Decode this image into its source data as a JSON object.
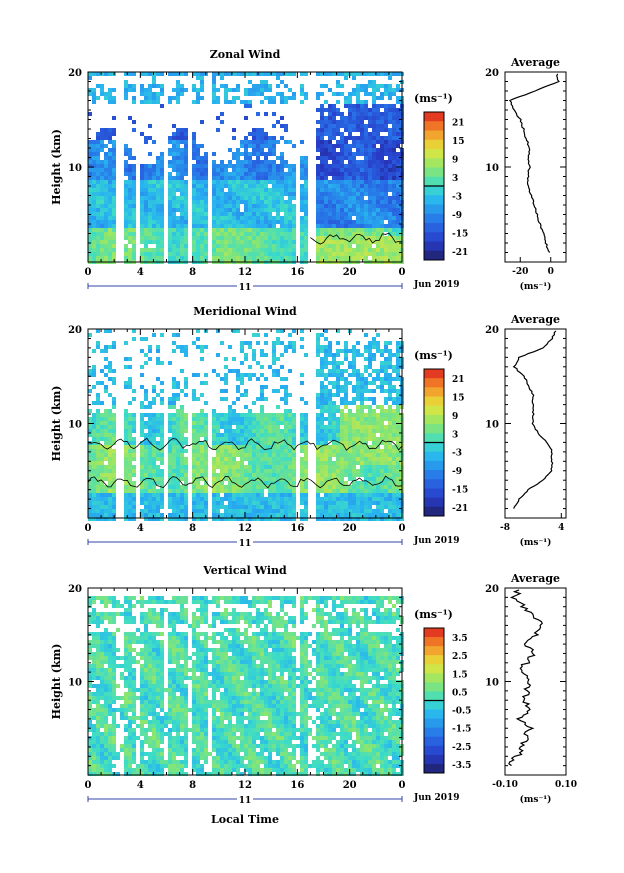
{
  "x_axis_label": "Local Time",
  "date_label": "Jun 2019",
  "day_label": "11",
  "colorbar_unit": "(ms⁻¹)",
  "chart_data": [
    {
      "type": "heatmap",
      "title": "Zonal Wind",
      "ylabel": "Height (km)",
      "xlabel": "",
      "xlim": [
        0,
        24
      ],
      "ylim": [
        0,
        20
      ],
      "x_ticks": [
        "0",
        "4",
        "8",
        "12",
        "16",
        "20",
        "0"
      ],
      "y_ticks": [
        "10",
        "20"
      ],
      "colorbar": {
        "unit": "(ms⁻¹)",
        "labels": [
          "21",
          "15",
          "9",
          "3",
          "-3",
          "-9",
          "-15",
          "-21"
        ],
        "range": [
          -24,
          24
        ]
      },
      "average_profile": {
        "title": "Average",
        "xlim": [
          -30,
          10
        ],
        "x_ticks": [
          "-20",
          "0"
        ],
        "unit": "(ms⁻¹)",
        "heights": [
          1,
          2,
          3,
          4,
          5,
          6,
          7,
          8,
          9,
          10,
          11,
          12,
          13,
          14,
          15,
          16,
          17,
          18,
          19,
          20
        ],
        "values": [
          -1,
          -3,
          -5,
          -7,
          -9,
          -11,
          -13,
          -15,
          -15,
          -14,
          -15,
          -14,
          -16,
          -18,
          -20,
          -24,
          -27,
          -10,
          5,
          4
        ]
      }
    },
    {
      "type": "heatmap",
      "title": "Meridional Wind",
      "ylabel": "Height (km)",
      "xlabel": "",
      "xlim": [
        0,
        24
      ],
      "ylim": [
        0,
        20
      ],
      "x_ticks": [
        "0",
        "4",
        "8",
        "12",
        "16",
        "20",
        "0"
      ],
      "y_ticks": [
        "10",
        "20"
      ],
      "colorbar": {
        "unit": "(ms⁻¹)",
        "labels": [
          "21",
          "15",
          "9",
          "3",
          "-3",
          "-9",
          "-15",
          "-21"
        ],
        "range": [
          -24,
          24
        ]
      },
      "average_profile": {
        "title": "Average",
        "xlim": [
          -8,
          5
        ],
        "x_ticks": [
          "-8",
          "4"
        ],
        "unit": "(ms⁻¹)",
        "heights": [
          1,
          2,
          3,
          4,
          5,
          6,
          7,
          8,
          9,
          10,
          11,
          12,
          13,
          14,
          15,
          16,
          17,
          18,
          19,
          20
        ],
        "values": [
          -6,
          -5,
          -3,
          0,
          2,
          2,
          2,
          1,
          -1,
          -2,
          -2,
          -2,
          -2,
          -3,
          -4,
          -6,
          -5,
          0,
          2,
          3
        ]
      }
    },
    {
      "type": "heatmap",
      "title": "Vertical Wind",
      "ylabel": "Height (km)",
      "xlabel": "Local Time",
      "xlim": [
        0,
        24
      ],
      "ylim": [
        0,
        20
      ],
      "x_ticks": [
        "0",
        "4",
        "8",
        "12",
        "16",
        "20",
        "0"
      ],
      "y_ticks": [
        "10",
        "20"
      ],
      "colorbar": {
        "unit": "(ms⁻¹)",
        "labels": [
          "3.5",
          "2.5",
          "1.5",
          "0.5",
          "-0.5",
          "-1.5",
          "-2.5",
          "-3.5"
        ],
        "range": [
          -4,
          4
        ]
      },
      "average_profile": {
        "title": "Average",
        "xlim": [
          -0.1,
          0.1
        ],
        "x_ticks": [
          "-0.10",
          "0.10"
        ],
        "unit": "(ms⁻¹)",
        "heights": [
          1,
          2,
          3,
          4,
          5,
          6,
          7,
          8,
          9,
          10,
          11,
          12,
          13,
          14,
          15,
          16,
          17,
          18,
          19,
          20
        ],
        "values": [
          -0.09,
          -0.06,
          -0.04,
          -0.03,
          -0.02,
          -0.05,
          -0.02,
          -0.04,
          -0.03,
          -0.02,
          -0.05,
          -0.03,
          -0.01,
          -0.03,
          0.0,
          0.02,
          -0.01,
          -0.04,
          -0.07,
          -0.05
        ]
      }
    }
  ]
}
